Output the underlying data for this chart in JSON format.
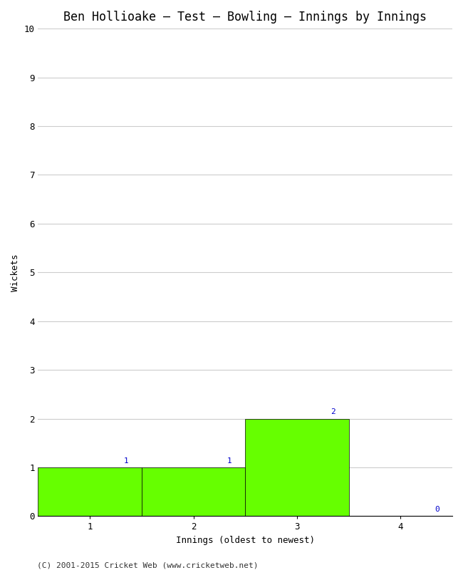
{
  "title": "Ben Hollioake – Test – Bowling – Innings by Innings",
  "xlabel": "Innings (oldest to newest)",
  "ylabel": "Wickets",
  "categories": [
    1,
    2,
    3,
    4
  ],
  "values": [
    1,
    1,
    2,
    0
  ],
  "bar_color": "#66ff00",
  "ylim": [
    0,
    10
  ],
  "yticks": [
    0,
    1,
    2,
    3,
    4,
    5,
    6,
    7,
    8,
    9,
    10
  ],
  "xticks": [
    1,
    2,
    3,
    4
  ],
  "background_color": "#ffffff",
  "grid_color": "#cccccc",
  "label_color": "#0000cc",
  "footer": "(C) 2001-2015 Cricket Web (www.cricketweb.net)",
  "title_fontsize": 12,
  "axis_label_fontsize": 9,
  "tick_fontsize": 9,
  "annotation_fontsize": 8,
  "footer_fontsize": 8
}
